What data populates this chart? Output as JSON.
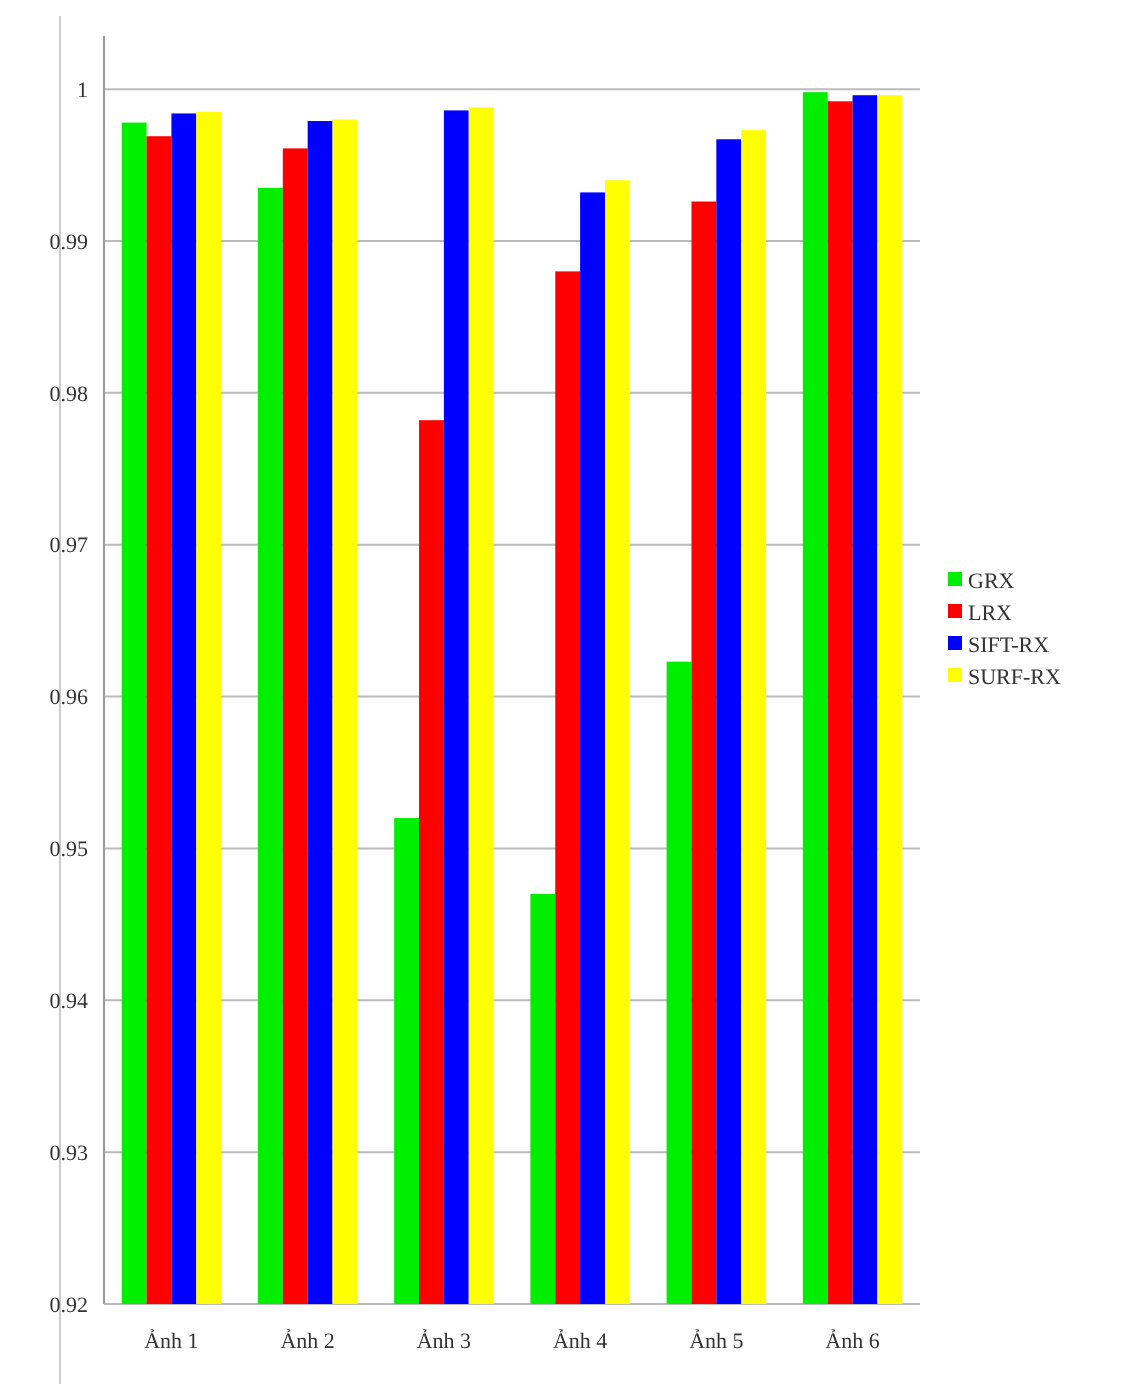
{
  "chart_data": {
    "type": "bar",
    "categories": [
      "Ảnh 1",
      "Ảnh 2",
      "Ảnh 3",
      "Ảnh 4",
      "Ảnh 5",
      "Ảnh 6"
    ],
    "series": [
      {
        "name": "GRX",
        "color": "#00ee00",
        "values": [
          0.9978,
          0.9935,
          0.952,
          0.947,
          0.9623,
          0.9998
        ]
      },
      {
        "name": "LRX",
        "color": "#ff0000",
        "values": [
          0.9969,
          0.9961,
          0.9782,
          0.988,
          0.9926,
          0.9992
        ]
      },
      {
        "name": "SIFT-RX",
        "color": "#0000ff",
        "values": [
          0.9984,
          0.9979,
          0.9986,
          0.9932,
          0.9967,
          0.9996
        ]
      },
      {
        "name": "SURF-RX",
        "color": "#ffff00",
        "values": [
          0.9985,
          0.998,
          0.9988,
          0.994,
          0.9973,
          0.9996
        ]
      }
    ],
    "ylim": [
      0.92,
      1.0035
    ],
    "yticks": [
      0.92,
      0.93,
      0.94,
      0.95,
      0.96,
      0.97,
      0.98,
      0.99,
      {
        "value": 1,
        "label": "1"
      }
    ],
    "grid": "y",
    "legend": "right"
  }
}
